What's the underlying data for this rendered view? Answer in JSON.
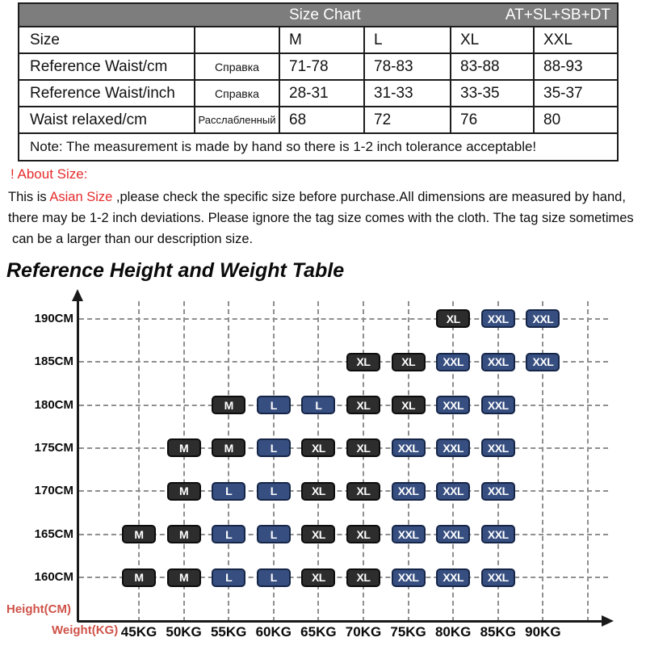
{
  "size_chart": {
    "header_title": "Size Chart",
    "header_right": "AT+SL+SB+DT",
    "rows": [
      {
        "label": "Size",
        "ru": "",
        "values": [
          "M",
          "L",
          "XL",
          "XXL"
        ]
      },
      {
        "label": "Reference Waist/cm",
        "ru": "Справка",
        "values": [
          "71-78",
          "78-83",
          "83-88",
          "88-93"
        ]
      },
      {
        "label": "Reference Waist/inch",
        "ru": "Справка",
        "values": [
          "28-31",
          "31-33",
          "33-35",
          "35-37"
        ]
      },
      {
        "label": "Waist relaxed/cm",
        "ru": "Расслабленный",
        "values": [
          "68",
          "72",
          "76",
          "80"
        ]
      }
    ],
    "note": "Note: The measurement is made by hand so there is 1-2 inch tolerance acceptable!"
  },
  "about": {
    "heading": "! About Size:",
    "line1_pre": "This is ",
    "line1_highlight": "Asian Size",
    "line1_post": " ,please check the specific size before purchase.All dimensions are measured by hand,",
    "line2": "there may be 1-2 inch deviations. Please ignore the tag size comes with the cloth. The tag size sometimes",
    "line3": "can be a larger than our description size."
  },
  "chart_heading": "Reference Height and Weight Table",
  "chart_data": {
    "type": "heatmap",
    "title": "Reference Height and Weight Table",
    "xlabel": "Weight(KG)",
    "ylabel": "Height(CM)",
    "x_ticks": [
      45,
      50,
      55,
      60,
      65,
      70,
      75,
      80,
      85,
      90
    ],
    "x_tick_labels": [
      "45KG",
      "50KG",
      "55KG",
      "60KG",
      "65KG",
      "70KG",
      "75KG",
      "80KG",
      "85KG",
      "90KG"
    ],
    "y_ticks": [
      190,
      185,
      180,
      175,
      170,
      165,
      160
    ],
    "y_tick_labels": [
      "190CM",
      "185CM",
      "180CM",
      "175CM",
      "170CM",
      "165CM",
      "160CM"
    ],
    "grid": "dashed",
    "legend": "none",
    "points": [
      {
        "height": 190,
        "weight": 80,
        "size": "XL"
      },
      {
        "height": 190,
        "weight": 85,
        "size": "XXL"
      },
      {
        "height": 190,
        "weight": 90,
        "size": "XXL"
      },
      {
        "height": 185,
        "weight": 70,
        "size": "XL"
      },
      {
        "height": 185,
        "weight": 75,
        "size": "XL"
      },
      {
        "height": 185,
        "weight": 80,
        "size": "XXL"
      },
      {
        "height": 185,
        "weight": 85,
        "size": "XXL"
      },
      {
        "height": 185,
        "weight": 90,
        "size": "XXL"
      },
      {
        "height": 180,
        "weight": 55,
        "size": "M"
      },
      {
        "height": 180,
        "weight": 60,
        "size": "L"
      },
      {
        "height": 180,
        "weight": 65,
        "size": "L"
      },
      {
        "height": 180,
        "weight": 70,
        "size": "XL"
      },
      {
        "height": 180,
        "weight": 75,
        "size": "XL"
      },
      {
        "height": 180,
        "weight": 80,
        "size": "XXL"
      },
      {
        "height": 180,
        "weight": 85,
        "size": "XXL"
      },
      {
        "height": 175,
        "weight": 50,
        "size": "M"
      },
      {
        "height": 175,
        "weight": 55,
        "size": "M"
      },
      {
        "height": 175,
        "weight": 60,
        "size": "L"
      },
      {
        "height": 175,
        "weight": 65,
        "size": "XL"
      },
      {
        "height": 175,
        "weight": 70,
        "size": "XL"
      },
      {
        "height": 175,
        "weight": 75,
        "size": "XXL"
      },
      {
        "height": 175,
        "weight": 80,
        "size": "XXL"
      },
      {
        "height": 175,
        "weight": 85,
        "size": "XXL"
      },
      {
        "height": 170,
        "weight": 50,
        "size": "M"
      },
      {
        "height": 170,
        "weight": 55,
        "size": "L"
      },
      {
        "height": 170,
        "weight": 60,
        "size": "L"
      },
      {
        "height": 170,
        "weight": 65,
        "size": "XL"
      },
      {
        "height": 170,
        "weight": 70,
        "size": "XL"
      },
      {
        "height": 170,
        "weight": 75,
        "size": "XXL"
      },
      {
        "height": 170,
        "weight": 80,
        "size": "XXL"
      },
      {
        "height": 170,
        "weight": 85,
        "size": "XXL"
      },
      {
        "height": 165,
        "weight": 45,
        "size": "M"
      },
      {
        "height": 165,
        "weight": 50,
        "size": "M"
      },
      {
        "height": 165,
        "weight": 55,
        "size": "L"
      },
      {
        "height": 165,
        "weight": 60,
        "size": "L"
      },
      {
        "height": 165,
        "weight": 65,
        "size": "XL"
      },
      {
        "height": 165,
        "weight": 70,
        "size": "XL"
      },
      {
        "height": 165,
        "weight": 75,
        "size": "XXL"
      },
      {
        "height": 165,
        "weight": 80,
        "size": "XXL"
      },
      {
        "height": 165,
        "weight": 85,
        "size": "XXL"
      },
      {
        "height": 160,
        "weight": 45,
        "size": "M"
      },
      {
        "height": 160,
        "weight": 50,
        "size": "M"
      },
      {
        "height": 160,
        "weight": 55,
        "size": "L"
      },
      {
        "height": 160,
        "weight": 60,
        "size": "L"
      },
      {
        "height": 160,
        "weight": 65,
        "size": "XL"
      },
      {
        "height": 160,
        "weight": 70,
        "size": "XL"
      },
      {
        "height": 160,
        "weight": 75,
        "size": "XXL"
      },
      {
        "height": 160,
        "weight": 80,
        "size": "XXL"
      },
      {
        "height": 160,
        "weight": 85,
        "size": "XXL"
      }
    ]
  },
  "colors": {
    "header_bg": "#7d7d7d",
    "red_text": "#e62b2b",
    "axis_label_red": "#cf5248",
    "box_dark_bg": "#2d2d2d",
    "box_dark_border": "#0c0c0c",
    "box_blue_bg": "#374f80",
    "box_blue_border": "#152547",
    "size_style_map": {
      "M": "dark",
      "L": "blue",
      "XL": "dark",
      "XXL": "blue"
    }
  }
}
